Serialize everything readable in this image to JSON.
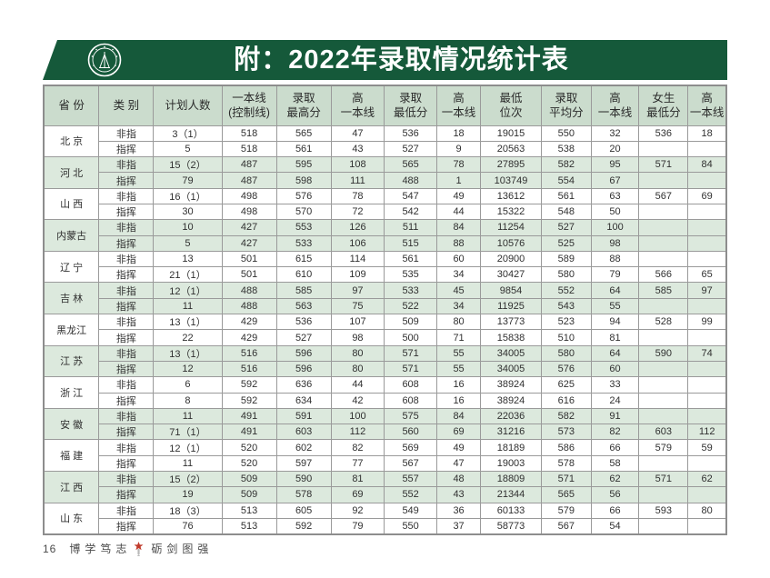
{
  "banner": {
    "title": "附：2022年录取情况统计表",
    "bg_color": "#15593a",
    "title_color": "#ffffff",
    "emblem": "university-seal-emblem"
  },
  "table": {
    "header_bg_color": "#cbdccd",
    "stripe_color": "#dce9dd",
    "headers": [
      {
        "line1": "省 份",
        "line2": ""
      },
      {
        "line1": "类 别",
        "line2": ""
      },
      {
        "line1": "计划人数",
        "line2": ""
      },
      {
        "line1": "一本线",
        "line2": "(控制线)"
      },
      {
        "line1": "录取",
        "line2": "最高分"
      },
      {
        "line1": "高",
        "line2": "一本线"
      },
      {
        "line1": "录取",
        "line2": "最低分"
      },
      {
        "line1": "高",
        "line2": "一本线"
      },
      {
        "line1": "最低",
        "line2": "位次"
      },
      {
        "line1": "录取",
        "line2": "平均分"
      },
      {
        "line1": "高",
        "line2": "一本线"
      },
      {
        "line1": "女生",
        "line2": "最低分"
      },
      {
        "line1": "高",
        "line2": "一本线"
      }
    ],
    "provinces": [
      {
        "name": "北 京",
        "shaded": false,
        "rows": [
          {
            "type": "非指",
            "cells": [
              "3（1）",
              "518",
              "565",
              "47",
              "536",
              "18",
              "19015",
              "550",
              "32",
              "536",
              "18"
            ]
          },
          {
            "type": "指挥",
            "cells": [
              "5",
              "518",
              "561",
              "43",
              "527",
              "9",
              "20563",
              "538",
              "20",
              "",
              ""
            ]
          }
        ]
      },
      {
        "name": "河 北",
        "shaded": true,
        "rows": [
          {
            "type": "非指",
            "cells": [
              "15（2）",
              "487",
              "595",
              "108",
              "565",
              "78",
              "27895",
              "582",
              "95",
              "571",
              "84"
            ]
          },
          {
            "type": "指挥",
            "cells": [
              "79",
              "487",
              "598",
              "111",
              "488",
              "1",
              "103749",
              "554",
              "67",
              "",
              ""
            ]
          }
        ]
      },
      {
        "name": "山 西",
        "shaded": false,
        "rows": [
          {
            "type": "非指",
            "cells": [
              "16（1）",
              "498",
              "576",
              "78",
              "547",
              "49",
              "13612",
              "561",
              "63",
              "567",
              "69"
            ]
          },
          {
            "type": "指挥",
            "cells": [
              "30",
              "498",
              "570",
              "72",
              "542",
              "44",
              "15322",
              "548",
              "50",
              "",
              ""
            ]
          }
        ]
      },
      {
        "name": "内蒙古",
        "shaded": true,
        "rows": [
          {
            "type": "非指",
            "cells": [
              "10",
              "427",
              "553",
              "126",
              "511",
              "84",
              "11254",
              "527",
              "100",
              "",
              ""
            ]
          },
          {
            "type": "指挥",
            "cells": [
              "5",
              "427",
              "533",
              "106",
              "515",
              "88",
              "10576",
              "525",
              "98",
              "",
              ""
            ]
          }
        ]
      },
      {
        "name": "辽 宁",
        "shaded": false,
        "rows": [
          {
            "type": "非指",
            "cells": [
              "13",
              "501",
              "615",
              "114",
              "561",
              "60",
              "20900",
              "589",
              "88",
              "",
              ""
            ]
          },
          {
            "type": "指挥",
            "cells": [
              "21（1）",
              "501",
              "610",
              "109",
              "535",
              "34",
              "30427",
              "580",
              "79",
              "566",
              "65"
            ]
          }
        ]
      },
      {
        "name": "吉 林",
        "shaded": true,
        "rows": [
          {
            "type": "非指",
            "cells": [
              "12（1）",
              "488",
              "585",
              "97",
              "533",
              "45",
              "9854",
              "552",
              "64",
              "585",
              "97"
            ]
          },
          {
            "type": "指挥",
            "cells": [
              "11",
              "488",
              "563",
              "75",
              "522",
              "34",
              "11925",
              "543",
              "55",
              "",
              ""
            ]
          }
        ]
      },
      {
        "name": "黑龙江",
        "shaded": false,
        "rows": [
          {
            "type": "非指",
            "cells": [
              "13（1）",
              "429",
              "536",
              "107",
              "509",
              "80",
              "13773",
              "523",
              "94",
              "528",
              "99"
            ]
          },
          {
            "type": "指挥",
            "cells": [
              "22",
              "429",
              "527",
              "98",
              "500",
              "71",
              "15838",
              "510",
              "81",
              "",
              ""
            ]
          }
        ]
      },
      {
        "name": "江 苏",
        "shaded": true,
        "rows": [
          {
            "type": "非指",
            "cells": [
              "13（1）",
              "516",
              "596",
              "80",
              "571",
              "55",
              "34005",
              "580",
              "64",
              "590",
              "74"
            ]
          },
          {
            "type": "指挥",
            "cells": [
              "12",
              "516",
              "596",
              "80",
              "571",
              "55",
              "34005",
              "576",
              "60",
              "",
              ""
            ]
          }
        ]
      },
      {
        "name": "浙 江",
        "shaded": false,
        "rows": [
          {
            "type": "非指",
            "cells": [
              "6",
              "592",
              "636",
              "44",
              "608",
              "16",
              "38924",
              "625",
              "33",
              "",
              ""
            ]
          },
          {
            "type": "指挥",
            "cells": [
              "8",
              "592",
              "634",
              "42",
              "608",
              "16",
              "38924",
              "616",
              "24",
              "",
              ""
            ]
          }
        ]
      },
      {
        "name": "安 徽",
        "shaded": true,
        "rows": [
          {
            "type": "非指",
            "cells": [
              "11",
              "491",
              "591",
              "100",
              "575",
              "84",
              "22036",
              "582",
              "91",
              "",
              ""
            ]
          },
          {
            "type": "指挥",
            "cells": [
              "71（1）",
              "491",
              "603",
              "112",
              "560",
              "69",
              "31216",
              "573",
              "82",
              "603",
              "112"
            ]
          }
        ]
      },
      {
        "name": "福 建",
        "shaded": false,
        "rows": [
          {
            "type": "非指",
            "cells": [
              "12（1）",
              "520",
              "602",
              "82",
              "569",
              "49",
              "18189",
              "586",
              "66",
              "579",
              "59"
            ]
          },
          {
            "type": "指挥",
            "cells": [
              "11",
              "520",
              "597",
              "77",
              "567",
              "47",
              "19003",
              "578",
              "58",
              "",
              ""
            ]
          }
        ]
      },
      {
        "name": "江 西",
        "shaded": true,
        "rows": [
          {
            "type": "非指",
            "cells": [
              "15（2）",
              "509",
              "590",
              "81",
              "557",
              "48",
              "18809",
              "571",
              "62",
              "571",
              "62"
            ]
          },
          {
            "type": "指挥",
            "cells": [
              "19",
              "509",
              "578",
              "69",
              "552",
              "43",
              "21344",
              "565",
              "56",
              "",
              ""
            ]
          }
        ]
      },
      {
        "name": "山 东",
        "shaded": false,
        "rows": [
          {
            "type": "非指",
            "cells": [
              "18（3）",
              "513",
              "605",
              "92",
              "549",
              "36",
              "60133",
              "579",
              "66",
              "593",
              "80"
            ]
          },
          {
            "type": "指挥",
            "cells": [
              "76",
              "513",
              "592",
              "79",
              "550",
              "37",
              "58773",
              "567",
              "54",
              "",
              ""
            ]
          }
        ]
      }
    ]
  },
  "footer": {
    "page_number": "16",
    "motto_left": "博学笃志",
    "motto_right": "砺剑图强",
    "star_color": "#c03a2b"
  }
}
